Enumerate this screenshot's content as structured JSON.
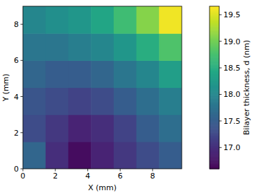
{
  "chart_data": {
    "type": "heatmap",
    "xlabel": "X (mm)",
    "ylabel": "Y (mm)",
    "xlim": [
      0,
      9.8
    ],
    "ylim": [
      0,
      9
    ],
    "xticks": [
      0,
      2,
      4,
      6,
      8
    ],
    "yticks": [
      0,
      2,
      4,
      6,
      8
    ],
    "x_edges": [
      0,
      1.4,
      2.8,
      4.2,
      5.6,
      7,
      8.4,
      9.8
    ],
    "y_edges": [
      0,
      1.5,
      3,
      4.5,
      6,
      7.5,
      9
    ],
    "cells": [
      [
        17.6,
        17.0,
        16.7,
        16.9,
        17.1,
        17.3,
        17.5
      ],
      [
        17.3,
        17.1,
        16.9,
        17.0,
        17.2,
        17.5,
        17.7
      ],
      [
        17.4,
        17.3,
        17.2,
        17.3,
        17.5,
        17.7,
        17.9
      ],
      [
        17.6,
        17.5,
        17.5,
        17.6,
        17.8,
        18.0,
        18.3
      ],
      [
        17.8,
        17.8,
        17.9,
        18.0,
        18.2,
        18.5,
        18.8
      ],
      [
        18.0,
        18.1,
        18.2,
        18.4,
        18.7,
        19.1,
        19.6
      ]
    ],
    "colorbar_label": "Bilayer thickness, d (nm)",
    "colorbar_range": [
      16.6,
      19.66
    ],
    "colorbar_ticks": [
      {
        "value": 17,
        "label": "17.0"
      },
      {
        "value": 17.5,
        "label": "17.5"
      },
      {
        "value": 18,
        "label": "18.0"
      },
      {
        "value": 18.5,
        "label": "18.5"
      },
      {
        "value": 19,
        "label": "19.0"
      },
      {
        "value": 19.5,
        "label": "19.5"
      }
    ]
  }
}
